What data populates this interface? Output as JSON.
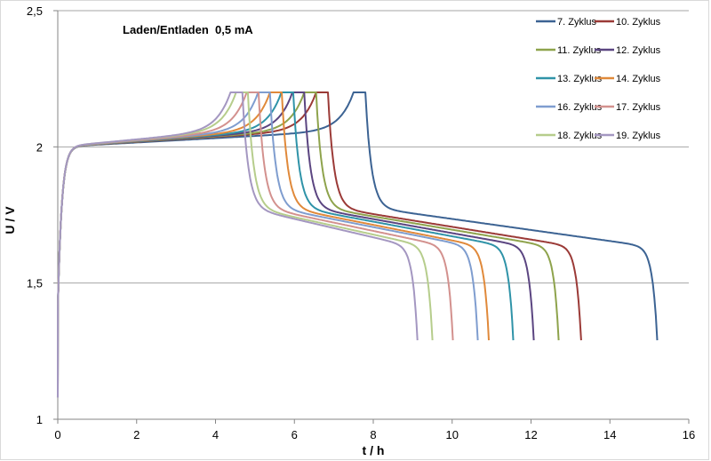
{
  "chart_data": {
    "type": "line",
    "title": "Laden/Entladen  0,5 mA",
    "xlabel": "t / h",
    "ylabel": "U / V",
    "xlim": [
      0,
      16
    ],
    "ylim": [
      1,
      2.5
    ],
    "xticks": [
      "0",
      "2",
      "4",
      "6",
      "8",
      "10",
      "12",
      "14",
      "16"
    ],
    "yticks": [
      "1",
      "1,5",
      "2",
      "2,5"
    ],
    "grid": "horizontal",
    "legend_position": "top-right",
    "charge_voltage_limit": 2.2,
    "discharge_voltage_limit": 1.29,
    "series": [
      {
        "name": "7. Zyklus",
        "color": "#3c6393",
        "reach_2_2V_h": 7.5,
        "switch_to_discharge_h": 7.8,
        "end_h": 15.2
      },
      {
        "name": "10. Zyklus",
        "color": "#9b3a37",
        "reach_2_2V_h": 6.55,
        "switch_to_discharge_h": 6.85,
        "end_h": 13.27
      },
      {
        "name": "11. Zyklus",
        "color": "#8ea34c",
        "reach_2_2V_h": 6.25,
        "switch_to_discharge_h": 6.55,
        "end_h": 12.7
      },
      {
        "name": "12. Zyklus",
        "color": "#5b4581",
        "reach_2_2V_h": 5.95,
        "switch_to_discharge_h": 6.25,
        "end_h": 12.07
      },
      {
        "name": "13. Zyklus",
        "color": "#2f93a8",
        "reach_2_2V_h": 5.67,
        "switch_to_discharge_h": 5.97,
        "end_h": 11.55
      },
      {
        "name": "14. Zyklus",
        "color": "#e0893a",
        "reach_2_2V_h": 5.38,
        "switch_to_discharge_h": 5.68,
        "end_h": 10.93
      },
      {
        "name": "16. Zyklus",
        "color": "#7f9dcf",
        "reach_2_2V_h": 5.08,
        "switch_to_discharge_h": 5.38,
        "end_h": 10.65
      },
      {
        "name": "17. Zyklus",
        "color": "#d3918e",
        "reach_2_2V_h": 4.79,
        "switch_to_discharge_h": 5.09,
        "end_h": 10.02
      },
      {
        "name": "18. Zyklus",
        "color": "#b6cd8c",
        "reach_2_2V_h": 4.52,
        "switch_to_discharge_h": 4.82,
        "end_h": 9.5
      },
      {
        "name": "19. Zyklus",
        "color": "#a497c1",
        "reach_2_2V_h": 4.38,
        "switch_to_discharge_h": 4.68,
        "end_h": 9.12
      }
    ]
  }
}
